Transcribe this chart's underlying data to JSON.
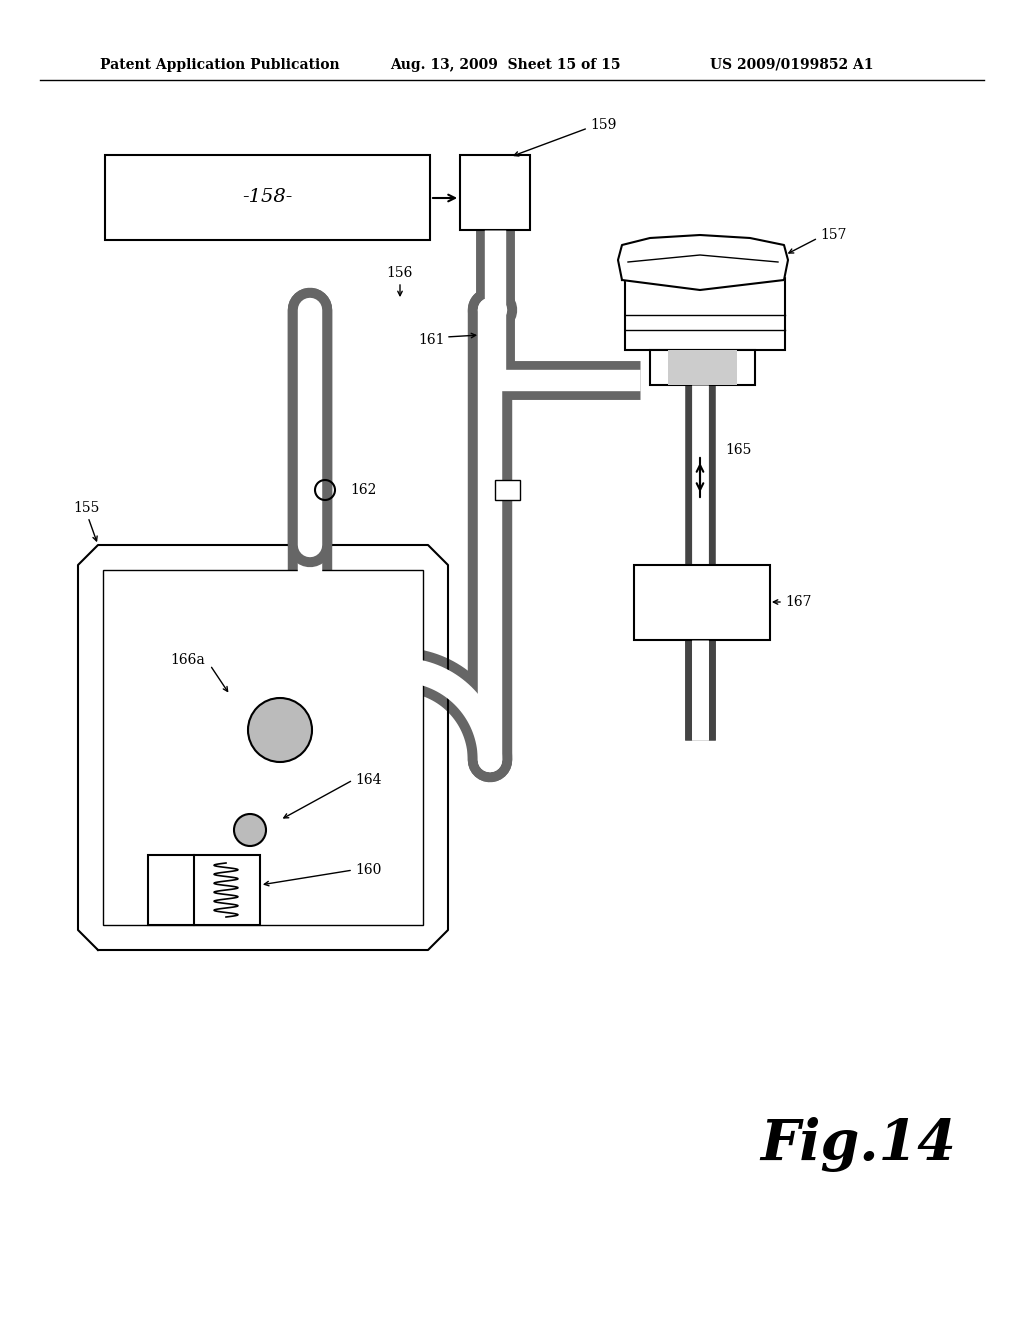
{
  "title_line1": "Patent Application Publication",
  "title_line2": "Aug. 13, 2009  Sheet 15 of 15",
  "title_line3": "US 2009/0199852 A1",
  "fig_label": "Fig.14",
  "bg_color": "#ffffff",
  "line_color": "#000000",
  "label_158": "-158-",
  "label_159": "159",
  "label_161": "161",
  "label_157": "157",
  "label_165": "165",
  "label_156": "156",
  "label_162": "162",
  "label_155": "155",
  "label_166a": "166a",
  "label_164": "164",
  "label_160": "160",
  "label_167": "167"
}
